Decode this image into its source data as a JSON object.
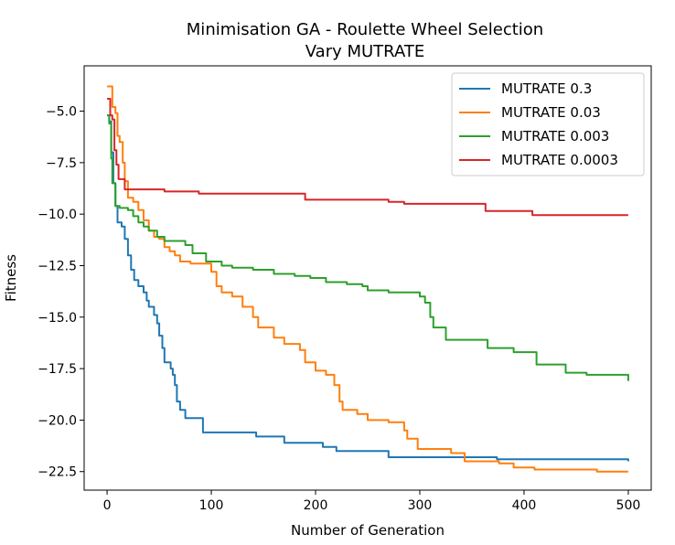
{
  "chart_data": {
    "type": "line",
    "title": "Minimisation GA - Roulette Wheel Selection",
    "subtitle": "Vary MUTRATE",
    "xlabel": "Number of Generation",
    "ylabel": "Fitness",
    "xlim": [
      -22,
      522
    ],
    "ylim": [
      -23.4,
      -2.8
    ],
    "xticks": [
      0,
      100,
      200,
      300,
      400,
      500
    ],
    "yticks": [
      -5.0,
      -7.5,
      -10.0,
      -12.5,
      -15.0,
      -17.5,
      -20.0,
      -22.5
    ],
    "xtick_labels": [
      "0",
      "100",
      "200",
      "300",
      "400",
      "500"
    ],
    "ytick_labels": [
      "−5.0",
      "−7.5",
      "−10.0",
      "−12.5",
      "−15.0",
      "−17.5",
      "−20.0",
      "−22.5"
    ],
    "grid": false,
    "legend_position": "top-right",
    "series": [
      {
        "name": "MUTRATE 0.3",
        "color": "#1f77b4",
        "points": [
          [
            0,
            -5.2
          ],
          [
            2,
            -5.5
          ],
          [
            4,
            -7.0
          ],
          [
            6,
            -8.5
          ],
          [
            8,
            -9.6
          ],
          [
            10,
            -10.4
          ],
          [
            14,
            -10.6
          ],
          [
            17,
            -11.2
          ],
          [
            20,
            -12.0
          ],
          [
            23,
            -12.7
          ],
          [
            26,
            -13.2
          ],
          [
            30,
            -13.5
          ],
          [
            35,
            -13.8
          ],
          [
            38,
            -14.2
          ],
          [
            40,
            -14.5
          ],
          [
            45,
            -14.9
          ],
          [
            48,
            -15.3
          ],
          [
            50,
            -15.9
          ],
          [
            53,
            -16.5
          ],
          [
            55,
            -17.2
          ],
          [
            61,
            -17.5
          ],
          [
            63,
            -17.8
          ],
          [
            65,
            -18.3
          ],
          [
            67,
            -19.1
          ],
          [
            70,
            -19.5
          ],
          [
            75,
            -19.9
          ],
          [
            92,
            -20.6
          ],
          [
            143,
            -20.8
          ],
          [
            170,
            -21.1
          ],
          [
            207,
            -21.3
          ],
          [
            220,
            -21.5
          ],
          [
            270,
            -21.8
          ],
          [
            374,
            -21.9
          ],
          [
            497,
            -21.9
          ],
          [
            500,
            -22.0
          ]
        ]
      },
      {
        "name": "MUTRATE 0.03",
        "color": "#ff7f0e",
        "points": [
          [
            0,
            -3.8
          ],
          [
            3,
            -3.8
          ],
          [
            5,
            -4.8
          ],
          [
            8,
            -5.1
          ],
          [
            10,
            -6.2
          ],
          [
            12,
            -6.5
          ],
          [
            15,
            -7.5
          ],
          [
            17,
            -8.4
          ],
          [
            20,
            -9.2
          ],
          [
            25,
            -9.4
          ],
          [
            30,
            -9.8
          ],
          [
            35,
            -10.3
          ],
          [
            40,
            -10.8
          ],
          [
            45,
            -11.1
          ],
          [
            50,
            -11.2
          ],
          [
            55,
            -11.6
          ],
          [
            60,
            -11.8
          ],
          [
            65,
            -12.0
          ],
          [
            70,
            -12.3
          ],
          [
            80,
            -12.4
          ],
          [
            100,
            -12.8
          ],
          [
            105,
            -13.5
          ],
          [
            110,
            -13.8
          ],
          [
            120,
            -14.0
          ],
          [
            130,
            -14.5
          ],
          [
            140,
            -15.0
          ],
          [
            145,
            -15.5
          ],
          [
            160,
            -16.0
          ],
          [
            170,
            -16.3
          ],
          [
            185,
            -16.6
          ],
          [
            190,
            -17.2
          ],
          [
            200,
            -17.6
          ],
          [
            210,
            -17.8
          ],
          [
            218,
            -18.3
          ],
          [
            223,
            -19.1
          ],
          [
            226,
            -19.5
          ],
          [
            240,
            -19.7
          ],
          [
            250,
            -20.0
          ],
          [
            270,
            -20.1
          ],
          [
            285,
            -20.5
          ],
          [
            288,
            -20.9
          ],
          [
            298,
            -21.4
          ],
          [
            330,
            -21.6
          ],
          [
            343,
            -22.0
          ],
          [
            376,
            -22.1
          ],
          [
            390,
            -22.3
          ],
          [
            410,
            -22.4
          ],
          [
            470,
            -22.5
          ],
          [
            500,
            -22.5
          ]
        ]
      },
      {
        "name": "MUTRATE 0.003",
        "color": "#2ca02c",
        "points": [
          [
            0,
            -5.2
          ],
          [
            2,
            -5.6
          ],
          [
            4,
            -7.3
          ],
          [
            5,
            -8.5
          ],
          [
            8,
            -9.6
          ],
          [
            12,
            -9.7
          ],
          [
            20,
            -9.8
          ],
          [
            25,
            -10.1
          ],
          [
            30,
            -10.4
          ],
          [
            35,
            -10.6
          ],
          [
            40,
            -10.8
          ],
          [
            48,
            -11.1
          ],
          [
            55,
            -11.3
          ],
          [
            75,
            -11.5
          ],
          [
            82,
            -11.9
          ],
          [
            95,
            -12.3
          ],
          [
            110,
            -12.5
          ],
          [
            120,
            -12.6
          ],
          [
            140,
            -12.7
          ],
          [
            160,
            -12.9
          ],
          [
            180,
            -13.0
          ],
          [
            195,
            -13.1
          ],
          [
            210,
            -13.3
          ],
          [
            230,
            -13.4
          ],
          [
            245,
            -13.5
          ],
          [
            250,
            -13.7
          ],
          [
            270,
            -13.8
          ],
          [
            300,
            -14.0
          ],
          [
            305,
            -14.3
          ],
          [
            310,
            -15.0
          ],
          [
            313,
            -15.5
          ],
          [
            325,
            -16.1
          ],
          [
            365,
            -16.5
          ],
          [
            390,
            -16.7
          ],
          [
            412,
            -17.3
          ],
          [
            440,
            -17.7
          ],
          [
            460,
            -17.8
          ],
          [
            490,
            -17.8
          ],
          [
            500,
            -18.1
          ]
        ]
      },
      {
        "name": "MUTRATE 0.0003",
        "color": "#d62728",
        "points": [
          [
            0,
            -4.4
          ],
          [
            2,
            -4.4
          ],
          [
            3,
            -5.2
          ],
          [
            5,
            -5.4
          ],
          [
            7,
            -6.9
          ],
          [
            9,
            -7.6
          ],
          [
            11,
            -8.3
          ],
          [
            17,
            -8.8
          ],
          [
            55,
            -8.9
          ],
          [
            88,
            -9.0
          ],
          [
            190,
            -9.3
          ],
          [
            270,
            -9.4
          ],
          [
            285,
            -9.5
          ],
          [
            363,
            -9.85
          ],
          [
            408,
            -10.05
          ],
          [
            500,
            -10.05
          ]
        ]
      }
    ]
  }
}
